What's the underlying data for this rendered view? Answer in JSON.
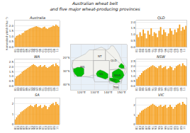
{
  "chart_data": [
    {
      "type": "bar",
      "title": "Australia",
      "ylabel": "Harvested yield (t ha⁻¹)",
      "categories": [
        "81",
        null,
        "83",
        null,
        "85",
        null,
        "87",
        null,
        "89",
        null,
        "91",
        null,
        "93",
        null,
        "95",
        null,
        "97",
        null,
        "99",
        null,
        "01",
        null,
        "03",
        null,
        "05",
        null,
        "07",
        null,
        "09",
        null,
        "11",
        null
      ],
      "values": [
        0.9,
        1.05,
        1.1,
        1.2,
        1.15,
        1.3,
        1.35,
        1.5,
        1.55,
        1.6,
        1.7,
        1.75,
        1.8,
        1.85,
        1.9,
        1.95,
        1.9,
        1.85,
        1.8,
        1.75,
        1.85,
        1.9,
        1.75,
        1.7,
        1.8,
        1.85,
        1.9,
        2.0,
        1.95,
        2.1,
        2.0,
        1.9
      ],
      "color": "#f5a020",
      "ylim": [
        0,
        2.478
      ],
      "yticks": [
        {
          "value": 0,
          "label": "0.0"
        },
        0.5,
        {
          "value": 1,
          "label": "1.0"
        },
        1.5,
        {
          "value": 2,
          "label": "2.0"
        }
      ],
      "grid": true
    },
    {
      "type": "bar",
      "title": "QLD",
      "categories": [
        "81",
        null,
        "83",
        null,
        "85",
        null,
        "87",
        null,
        "89",
        null,
        "91",
        null,
        "93",
        null,
        "95",
        null,
        "97",
        null,
        "99",
        null,
        "01",
        null,
        "03",
        null,
        "05",
        null,
        "07",
        null,
        "09",
        null,
        "11",
        null
      ],
      "values": [
        1.0,
        0.8,
        1.2,
        0.9,
        1.4,
        1.1,
        0.7,
        1.3,
        1.0,
        1.5,
        0.9,
        1.2,
        1.1,
        0.8,
        1.3,
        1.6,
        1.0,
        1.4,
        1.2,
        0.9,
        1.1,
        1.5,
        1.3,
        1.0,
        1.4,
        1.2,
        1.5,
        1.8,
        1.3,
        1.6,
        1.4,
        1.7
      ],
      "color": "#f5a020",
      "ylim": [
        0,
        2.124
      ],
      "yticks": [
        {
          "value": 0,
          "label": "0.0"
        },
        0.5,
        {
          "value": 1,
          "label": "1.0"
        },
        1.5,
        {
          "value": 2,
          "label": "2.0"
        }
      ],
      "grid": true
    },
    {
      "type": "bar",
      "title": "WA",
      "categories": [
        "81",
        null,
        "83",
        null,
        "85",
        null,
        "87",
        null,
        "89",
        null,
        "91",
        null,
        "93",
        null,
        "95",
        null,
        "97",
        null,
        "99",
        null,
        "01",
        null,
        "03",
        null,
        "05",
        null,
        "07",
        null,
        "09",
        null,
        "11",
        null
      ],
      "values": [
        0.8,
        1.0,
        1.1,
        1.2,
        1.3,
        1.5,
        1.6,
        1.7,
        1.8,
        1.9,
        2.0,
        2.1,
        2.2,
        2.3,
        2.2,
        2.1,
        2.0,
        2.1,
        2.2,
        2.0,
        2.1,
        2.2,
        2.0,
        1.9,
        2.0,
        2.1,
        2.2,
        2.3,
        2.1,
        2.4,
        2.2,
        2.1
      ],
      "color": "#f5a020",
      "ylim": [
        0,
        2.832
      ],
      "yticks": [
        {
          "value": 0,
          "label": "0.0"
        },
        0.5,
        {
          "value": 1,
          "label": "1.0"
        },
        1.5,
        {
          "value": 2,
          "label": "2.0"
        },
        2.5
      ],
      "grid": true
    },
    {
      "type": "bar",
      "title": "NSW",
      "categories": [
        "81",
        null,
        "83",
        null,
        "85",
        null,
        "87",
        null,
        "89",
        null,
        "91",
        null,
        "93",
        null,
        "95",
        null,
        "97",
        null,
        "99",
        null,
        "01",
        null,
        "03",
        null,
        "05",
        null,
        "07",
        null,
        "09",
        null,
        "11",
        null
      ],
      "values": [
        0.7,
        0.9,
        1.1,
        1.3,
        1.5,
        1.6,
        1.7,
        1.8,
        1.9,
        2.0,
        2.1,
        2.0,
        1.9,
        1.8,
        2.0,
        2.1,
        1.8,
        1.9,
        2.0,
        1.7,
        1.8,
        2.0,
        1.9,
        1.6,
        1.8,
        2.0,
        2.1,
        2.2,
        2.0,
        2.3,
        2.1,
        2.0
      ],
      "color": "#f5a020",
      "ylim": [
        0,
        2.714
      ],
      "yticks": [
        {
          "value": 0,
          "label": "0.0"
        },
        0.5,
        {
          "value": 1,
          "label": "1.0"
        },
        1.5,
        {
          "value": 2,
          "label": "2.0"
        },
        2.5
      ],
      "grid": true
    },
    {
      "type": "bar",
      "title": "SA",
      "categories": [
        "81",
        null,
        "83",
        null,
        "85",
        null,
        "87",
        null,
        "89",
        null,
        "91",
        null,
        "93",
        null,
        "95",
        null,
        "97",
        null,
        "99",
        null,
        "01",
        null,
        "03",
        null,
        "05",
        null,
        "07",
        null,
        "09",
        null,
        "11",
        null
      ],
      "values": [
        0.5,
        0.7,
        0.9,
        1.0,
        1.2,
        1.3,
        1.4,
        1.5,
        1.6,
        1.7,
        1.8,
        1.9,
        1.8,
        1.7,
        1.9,
        2.0,
        1.7,
        1.8,
        1.9,
        1.6,
        1.7,
        1.9,
        1.8,
        1.5,
        1.7,
        1.9,
        2.0,
        2.1,
        1.9,
        2.2,
        2.0,
        1.9
      ],
      "color": "#f5a020",
      "ylim": [
        0,
        2.596
      ],
      "yticks": [
        0,
        1,
        2
      ],
      "grid": true
    },
    {
      "type": "bar",
      "title": "VIC",
      "categories": [
        "81",
        null,
        "83",
        null,
        "85",
        null,
        "87",
        null,
        "89",
        null,
        "91",
        null,
        "93",
        null,
        "95",
        null,
        "97",
        null,
        "99",
        null,
        "01",
        null,
        "03",
        null,
        "05",
        null,
        "07",
        null,
        "09",
        null,
        "11",
        null
      ],
      "values": [
        0.8,
        1.0,
        1.2,
        1.4,
        1.5,
        1.6,
        1.7,
        1.8,
        1.9,
        2.0,
        2.1,
        2.0,
        1.9,
        1.8,
        1.9,
        2.0,
        1.8,
        1.9,
        2.0,
        1.7,
        1.8,
        2.0,
        1.8,
        1.6,
        1.8,
        2.0,
        2.1,
        2.2,
        2.0,
        2.3,
        2.1,
        2.0
      ],
      "color": "#f5a020",
      "ylim": [
        0,
        2.714
      ],
      "yticks": [
        0,
        1,
        2
      ],
      "grid": true
    },
    {
      "type": "map",
      "title": "Australian wheat belt\nand five major wheat-producing provinces",
      "xlim": [
        112,
        154
      ],
      "ylim": [
        -44,
        -10
      ],
      "xticks": [
        {
          "value": 120,
          "label": "120°E"
        },
        {
          "value": 130,
          "label": "130°E"
        },
        {
          "value": 140,
          "label": "140°E"
        },
        {
          "value": 150,
          "label": "150°E"
        }
      ],
      "yticks": [
        {
          "value": -20,
          "label": "20°S"
        },
        {
          "value": -30,
          "label": "30°S"
        },
        {
          "value": -40,
          "label": "40°S"
        }
      ],
      "grid": true,
      "color": "#e8f0f8",
      "series": [
        {
          "type": "area",
          "color": "#f2f2ee",
          "x": [
            114,
            115,
            117,
            119,
            121,
            123,
            126,
            129,
            132,
            135,
            137,
            139,
            141,
            142,
            144,
            146,
            148,
            150,
            152,
            153,
            154,
            154,
            153,
            151,
            150,
            149,
            147,
            146,
            144,
            143,
            141,
            140,
            138,
            135,
            132,
            130,
            128,
            126,
            124,
            122,
            120,
            118,
            115,
            114,
            113,
            113,
            114
          ],
          "values": [
            -22,
            -21,
            -20,
            -19,
            -18,
            -17,
            -14,
            -14,
            -13,
            -12,
            -13,
            -14,
            -13,
            -11,
            -11,
            -14,
            -17,
            -22,
            -25,
            -27,
            -28,
            -30,
            -32,
            -34,
            -36,
            -38,
            -39,
            -39,
            -38,
            -37,
            -38,
            -36,
            -36,
            -35,
            -34,
            -33,
            -33,
            -34,
            -34,
            -34,
            -34,
            -32,
            -33,
            -30,
            -26,
            -22,
            -22
          ]
        },
        {
          "type": "line",
          "color": "#aaaaaa",
          "x": [
            114,
            129,
            129,
            122,
            115,
            113,
            114
          ],
          "values": [
            -22,
            -22,
            -35,
            -34,
            -34,
            -26,
            -22
          ]
        },
        {
          "type": "line",
          "color": "#aaaaaa",
          "x": [
            129,
            141,
            141,
            141,
            130,
            129,
            129
          ],
          "values": [
            -22,
            -22,
            -26,
            -38,
            -38,
            -35,
            -22
          ]
        },
        {
          "type": "line",
          "color": "#aaaaaa",
          "x": [
            129,
            138,
            138,
            129,
            129
          ],
          "values": [
            -14,
            -14,
            -22,
            -22,
            -14
          ]
        },
        {
          "type": "line",
          "color": "#aaaaaa",
          "x": [
            138,
            153,
            141,
            141,
            138,
            138
          ],
          "values": [
            -14,
            -28,
            -29,
            -22,
            -22,
            -14
          ]
        },
        {
          "type": "line",
          "color": "#aaaaaa",
          "x": [
            141,
            153,
            150,
            141,
            141
          ],
          "values": [
            -29,
            -28,
            -38,
            -38,
            -29
          ]
        },
        {
          "type": "line",
          "color": "#aaaaaa",
          "x": [
            141,
            150,
            150,
            141,
            141
          ],
          "values": [
            -34,
            -34,
            -39,
            -39,
            -34
          ]
        },
        {
          "type": "area",
          "color": "#f2f2ee",
          "x": [
            144,
            148,
            148,
            144,
            144
          ],
          "values": [
            -40,
            -40,
            -44,
            -44,
            -40
          ]
        },
        {
          "type": "area",
          "color": "#00bb00",
          "x": [
            115,
            117,
            120,
            122,
            122,
            120,
            117,
            115,
            114,
            114,
            115
          ],
          "values": [
            -28,
            -27,
            -27,
            -28,
            -32,
            -34,
            -34,
            -32,
            -30,
            -28,
            -28
          ]
        },
        {
          "type": "area",
          "color": "#00bb00",
          "x": [
            132,
            134,
            137,
            140,
            140,
            138,
            135,
            132,
            131,
            132
          ],
          "values": [
            -30,
            -29,
            -30,
            -32,
            -35,
            -36,
            -35,
            -34,
            -32,
            -30
          ]
        },
        {
          "type": "area",
          "color": "#00bb00",
          "x": [
            144,
            148,
            151,
            152,
            151,
            148,
            145,
            143,
            143,
            144
          ],
          "values": [
            -30,
            -28,
            -30,
            -33,
            -35,
            -37,
            -37,
            -34,
            -31,
            -30
          ]
        },
        {
          "type": "area",
          "color": "#00bb00",
          "x": [
            148,
            150,
            152,
            152,
            150,
            148,
            148
          ],
          "values": [
            -26,
            -24,
            -26,
            -28,
            -28,
            -27,
            -26
          ]
        },
        {
          "type": "area",
          "color": "#00bb00",
          "x": [
            141,
            145,
            148,
            149,
            146,
            143,
            141,
            141
          ],
          "values": [
            -35,
            -35,
            -36,
            -38,
            -39,
            -38,
            -37,
            -35
          ]
        }
      ],
      "annotations": [
        {
          "text": "WA",
          "x": 121,
          "y": -27
        },
        {
          "text": "SA",
          "x": 135,
          "y": -32
        },
        {
          "text": "NT",
          "x": 134,
          "y": -19
        },
        {
          "text": "QLD",
          "x": 144,
          "y": -22
        },
        {
          "text": "NSW",
          "x": 147,
          "y": -33
        },
        {
          "text": "VIC",
          "x": 144,
          "y": -37
        },
        {
          "text": "TAS",
          "x": 146,
          "y": -42
        }
      ]
    }
  ]
}
